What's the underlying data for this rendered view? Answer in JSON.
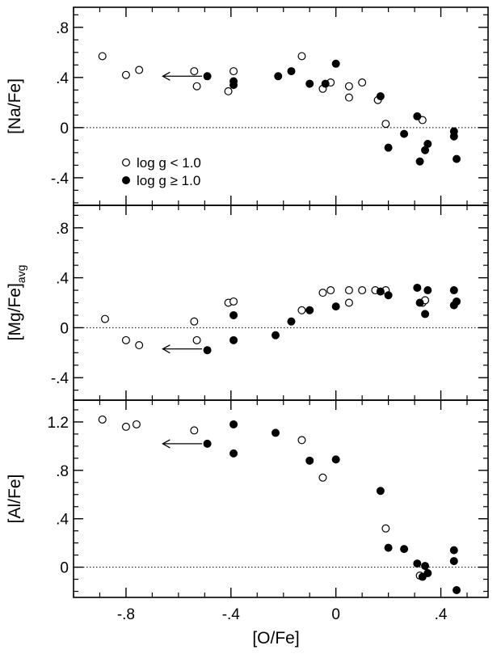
{
  "chart_data": {
    "type": "scatter",
    "x_axis": {
      "label": "[O/Fe]",
      "range": [
        -1.0,
        0.58
      ],
      "ticks": [
        -0.8,
        -0.4,
        0,
        0.4
      ],
      "tick_labels": [
        "-.8",
        "-.4",
        "0",
        ".4"
      ],
      "minor_ticks": [
        -1.0,
        -0.9,
        -0.7,
        -0.6,
        -0.5,
        -0.3,
        -0.2,
        -0.1,
        0.1,
        0.2,
        0.3,
        0.5
      ]
    },
    "legend": {
      "position": "lower-left of top panel",
      "entries": [
        {
          "label": "log g < 1.0",
          "marker": "open-circle"
        },
        {
          "label": "log g ≥ 1.0",
          "marker": "filled-circle"
        }
      ]
    },
    "panels": [
      {
        "ylabel": "[Na/Fe]",
        "ylabel_sub": "",
        "ylim": [
          -0.62,
          0.96
        ],
        "yticks": [
          -0.4,
          0,
          0.4,
          0.8
        ],
        "ytick_labels": [
          "-.4",
          "0",
          ".4",
          ".8"
        ],
        "zero_line": true,
        "upper_limit_arrow": {
          "x_from": -0.51,
          "x_to": -0.66,
          "y": 0.41
        },
        "series": [
          {
            "name": "log g < 1.0",
            "marker": "open",
            "points": [
              [
                -0.89,
                0.57
              ],
              [
                -0.8,
                0.42
              ],
              [
                -0.75,
                0.46
              ],
              [
                -0.54,
                0.45
              ],
              [
                -0.53,
                0.33
              ],
              [
                -0.41,
                0.29
              ],
              [
                -0.39,
                0.45
              ],
              [
                -0.13,
                0.57
              ],
              [
                -0.05,
                0.31
              ],
              [
                -0.02,
                0.36
              ],
              [
                0.05,
                0.33
              ],
              [
                0.05,
                0.24
              ],
              [
                0.1,
                0.36
              ],
              [
                0.16,
                0.22
              ],
              [
                0.19,
                0.03
              ],
              [
                0.33,
                0.06
              ]
            ]
          },
          {
            "name": "log g ≥ 1.0",
            "marker": "filled",
            "points": [
              [
                -0.49,
                0.41
              ],
              [
                -0.39,
                0.37
              ],
              [
                -0.39,
                0.34
              ],
              [
                -0.22,
                0.41
              ],
              [
                -0.17,
                0.45
              ],
              [
                -0.1,
                0.35
              ],
              [
                -0.04,
                0.35
              ],
              [
                0.0,
                0.51
              ],
              [
                0.17,
                0.25
              ],
              [
                0.2,
                -0.16
              ],
              [
                0.26,
                -0.05
              ],
              [
                0.31,
                0.09
              ],
              [
                0.32,
                -0.27
              ],
              [
                0.34,
                -0.18
              ],
              [
                0.35,
                -0.13
              ],
              [
                0.45,
                -0.03
              ],
              [
                0.45,
                -0.07
              ],
              [
                0.46,
                -0.25
              ]
            ]
          }
        ]
      },
      {
        "ylabel": "[Mg/Fe]",
        "ylabel_sub": "avg",
        "ylim": [
          -0.58,
          0.98
        ],
        "yticks": [
          -0.4,
          0,
          0.4,
          0.8
        ],
        "ytick_labels": [
          "-.4",
          "0",
          ".4",
          ".8"
        ],
        "zero_line": true,
        "upper_limit_arrow": {
          "x_from": -0.51,
          "x_to": -0.66,
          "y": -0.17
        },
        "series": [
          {
            "name": "log g < 1.0",
            "marker": "open",
            "points": [
              [
                -0.88,
                0.07
              ],
              [
                -0.8,
                -0.1
              ],
              [
                -0.75,
                -0.14
              ],
              [
                -0.54,
                0.05
              ],
              [
                -0.53,
                -0.1
              ],
              [
                -0.41,
                0.2
              ],
              [
                -0.39,
                0.21
              ],
              [
                -0.13,
                0.14
              ],
              [
                -0.05,
                0.28
              ],
              [
                -0.02,
                0.3
              ],
              [
                0.05,
                0.3
              ],
              [
                0.05,
                0.2
              ],
              [
                0.1,
                0.3
              ],
              [
                0.15,
                0.3
              ],
              [
                0.19,
                0.3
              ],
              [
                0.33,
                0.2
              ],
              [
                0.34,
                0.22
              ]
            ]
          },
          {
            "name": "log g ≥ 1.0",
            "marker": "filled",
            "points": [
              [
                -0.49,
                -0.18
              ],
              [
                -0.39,
                0.1
              ],
              [
                -0.39,
                -0.1
              ],
              [
                -0.23,
                -0.06
              ],
              [
                -0.17,
                0.05
              ],
              [
                -0.1,
                0.14
              ],
              [
                0.0,
                0.17
              ],
              [
                0.17,
                0.29
              ],
              [
                0.2,
                0.26
              ],
              [
                0.31,
                0.32
              ],
              [
                0.32,
                0.2
              ],
              [
                0.34,
                0.11
              ],
              [
                0.35,
                0.3
              ],
              [
                0.45,
                0.3
              ],
              [
                0.45,
                0.18
              ],
              [
                0.46,
                0.21
              ]
            ]
          }
        ]
      },
      {
        "ylabel": "[Al/Fe]",
        "ylabel_sub": "",
        "ylim": [
          -0.25,
          1.38
        ],
        "yticks": [
          0,
          0.4,
          0.8,
          1.2
        ],
        "ytick_labels": [
          "0",
          ".4",
          ".8",
          "1.2"
        ],
        "zero_line": true,
        "upper_limit_arrow": {
          "x_from": -0.51,
          "x_to": -0.66,
          "y": 1.02
        },
        "series": [
          {
            "name": "log g < 1.0",
            "marker": "open",
            "points": [
              [
                -0.89,
                1.22
              ],
              [
                -0.8,
                1.16
              ],
              [
                -0.76,
                1.18
              ],
              [
                -0.54,
                1.13
              ],
              [
                -0.13,
                1.05
              ],
              [
                -0.05,
                0.74
              ],
              [
                0.19,
                0.32
              ],
              [
                0.32,
                -0.07
              ]
            ]
          },
          {
            "name": "log g ≥ 1.0",
            "marker": "filled",
            "points": [
              [
                -0.49,
                1.02
              ],
              [
                -0.39,
                1.18
              ],
              [
                -0.39,
                0.94
              ],
              [
                -0.23,
                1.11
              ],
              [
                -0.1,
                0.88
              ],
              [
                0.0,
                0.89
              ],
              [
                0.17,
                0.63
              ],
              [
                0.2,
                0.16
              ],
              [
                0.26,
                0.15
              ],
              [
                0.31,
                0.03
              ],
              [
                0.33,
                -0.08
              ],
              [
                0.34,
                0.01
              ],
              [
                0.35,
                -0.05
              ],
              [
                0.45,
                0.14
              ],
              [
                0.45,
                0.05
              ],
              [
                0.46,
                -0.19
              ]
            ]
          }
        ]
      }
    ]
  }
}
